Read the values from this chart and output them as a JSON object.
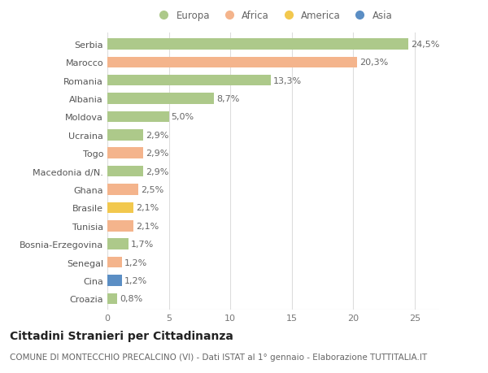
{
  "title": "Cittadini Stranieri per Cittadinanza",
  "subtitle": "COMUNE DI MONTECCHIO PRECALCINO (VI) - Dati ISTAT al 1° gennaio - Elaborazione TUTTITALIA.IT",
  "countries": [
    "Serbia",
    "Marocco",
    "Romania",
    "Albania",
    "Moldova",
    "Ucraina",
    "Togo",
    "Macedonia d/N.",
    "Ghana",
    "Brasile",
    "Tunisia",
    "Bosnia-Erzegovina",
    "Senegal",
    "Cina",
    "Croazia"
  ],
  "values": [
    24.5,
    20.3,
    13.3,
    8.7,
    5.0,
    2.9,
    2.9,
    2.9,
    2.5,
    2.1,
    2.1,
    1.7,
    1.2,
    1.2,
    0.8
  ],
  "labels": [
    "24,5%",
    "20,3%",
    "13,3%",
    "8,7%",
    "5,0%",
    "2,9%",
    "2,9%",
    "2,9%",
    "2,5%",
    "2,1%",
    "2,1%",
    "1,7%",
    "1,2%",
    "1,2%",
    "0,8%"
  ],
  "continents": [
    "Europa",
    "Africa",
    "Europa",
    "Europa",
    "Europa",
    "Europa",
    "Africa",
    "Europa",
    "Africa",
    "America",
    "Africa",
    "Europa",
    "Africa",
    "Asia",
    "Europa"
  ],
  "continent_colors": {
    "Europa": "#adc98a",
    "Africa": "#f4b48c",
    "America": "#f2c84e",
    "Asia": "#5b8ec4"
  },
  "legend_items": [
    "Europa",
    "Africa",
    "America",
    "Asia"
  ],
  "legend_colors": [
    "#adc98a",
    "#f4b48c",
    "#f2c84e",
    "#5b8ec4"
  ],
  "xlim": [
    0,
    27
  ],
  "background_color": "#ffffff",
  "bar_height": 0.6,
  "title_fontsize": 10,
  "subtitle_fontsize": 7.5,
  "label_fontsize": 8,
  "tick_fontsize": 8,
  "legend_fontsize": 8.5
}
